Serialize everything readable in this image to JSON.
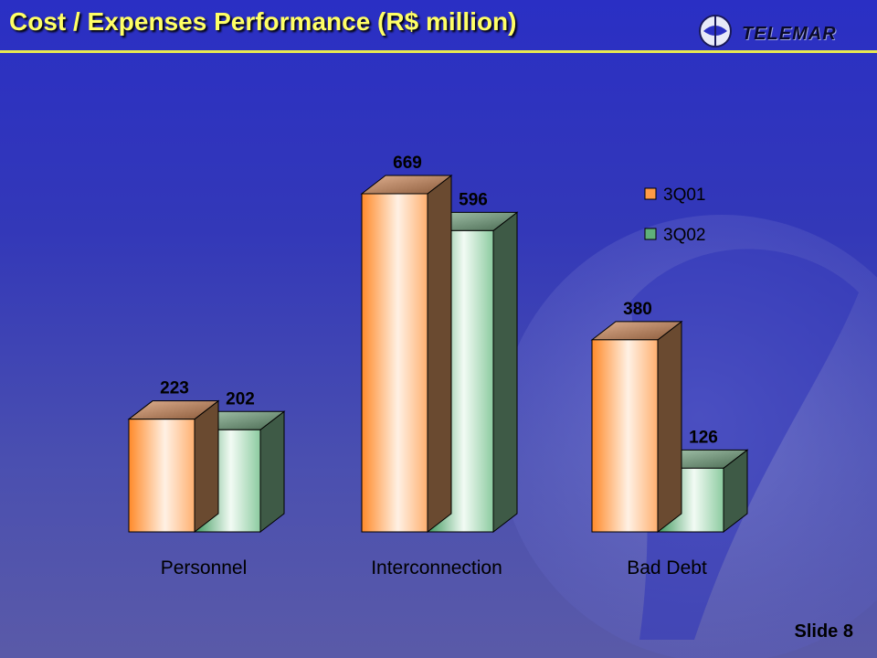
{
  "slide": {
    "title": "Cost / Expenses Performance (R$ million)",
    "slide_number": "Slide 8"
  },
  "logo": {
    "text": "TELEMAR"
  },
  "colors": {
    "series_3q01": "#ff9b45",
    "series_3q02": "#5fb07a",
    "title": "#ffff66"
  },
  "chart_data": {
    "type": "bar",
    "title": "",
    "xlabel": "",
    "ylabel": "",
    "categories": [
      "Personnel",
      "Interconnection",
      "Bad Debt"
    ],
    "series": [
      {
        "name": "3Q01",
        "values": [
          223,
          669,
          380
        ]
      },
      {
        "name": "3Q02",
        "values": [
          202,
          596,
          126
        ]
      }
    ],
    "ylim": [
      0,
      669
    ],
    "grid": false,
    "legend": "top-right",
    "bar_style": "3d"
  }
}
